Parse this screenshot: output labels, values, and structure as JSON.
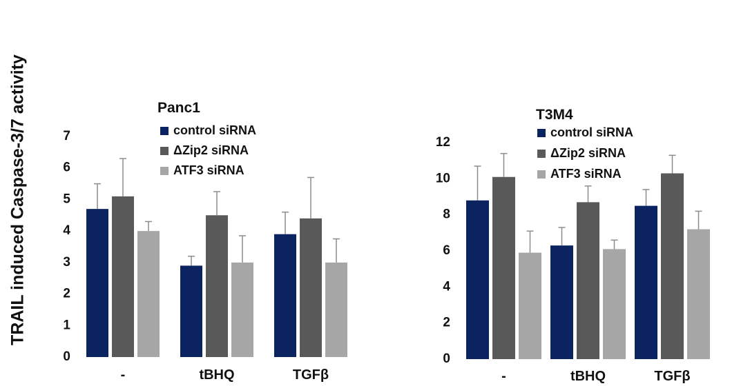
{
  "figure": {
    "ylabel": "TRAIL induced Caspase-3/7 activity"
  },
  "chart_data": [
    {
      "type": "bar",
      "title": "Panc1",
      "categories": [
        "-",
        "tBHQ",
        "TGFβ"
      ],
      "ylim": [
        0,
        7
      ],
      "yticks": [
        0,
        1,
        2,
        3,
        4,
        5,
        6,
        7
      ],
      "grid": false,
      "legend_position": "top",
      "series": [
        {
          "name": "control siRNA",
          "color": "#0b2361",
          "values": [
            4.7,
            2.9,
            3.9
          ],
          "errors": [
            0.8,
            0.3,
            0.7
          ]
        },
        {
          "name": "ΔZip2 siRNA",
          "color": "#595959",
          "values": [
            5.1,
            4.5,
            4.4
          ],
          "errors": [
            1.2,
            0.75,
            1.3
          ]
        },
        {
          "name": "ATF3 siRNA",
          "color": "#a6a6a6",
          "values": [
            4.0,
            3.0,
            3.0
          ],
          "errors": [
            0.3,
            0.85,
            0.75
          ]
        }
      ]
    },
    {
      "type": "bar",
      "title": "T3M4",
      "categories": [
        "-",
        "tBHQ",
        "TGFβ"
      ],
      "ylim": [
        0,
        12
      ],
      "yticks": [
        0,
        2,
        4,
        6,
        8,
        10,
        12
      ],
      "grid": false,
      "legend_position": "top",
      "series": [
        {
          "name": "control siRNA",
          "color": "#0b2361",
          "values": [
            8.8,
            6.3,
            8.5
          ],
          "errors": [
            1.9,
            1.0,
            0.9
          ]
        },
        {
          "name": "ΔZip2 siRNA",
          "color": "#595959",
          "values": [
            10.1,
            8.7,
            10.3
          ],
          "errors": [
            1.3,
            0.9,
            1.0
          ]
        },
        {
          "name": "ATF3 siRNA",
          "color": "#a6a6a6",
          "values": [
            5.9,
            6.1,
            7.2
          ],
          "errors": [
            1.2,
            0.5,
            1.0
          ]
        }
      ]
    }
  ]
}
